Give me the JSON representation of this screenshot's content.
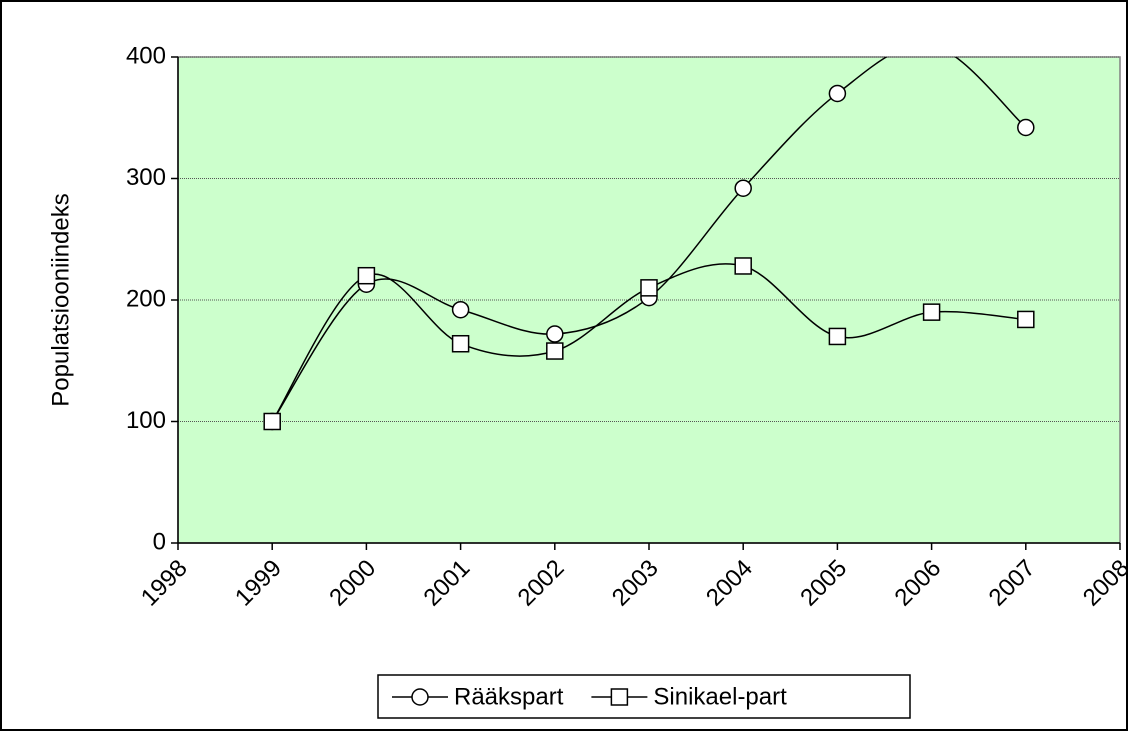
{
  "chart_data": {
    "type": "line",
    "y_label": "Populatsiooniindeks",
    "x": [
      1999,
      2000,
      2001,
      2002,
      2003,
      2004,
      2005,
      2006,
      2007
    ],
    "series": [
      {
        "name": "Rääkspart",
        "color": "#000000",
        "marker": "circle",
        "values": [
          100,
          213,
          192,
          172,
          202,
          292,
          370,
          410,
          342
        ]
      },
      {
        "name": "Sinikael-part",
        "color": "#000000",
        "marker": "square",
        "values": [
          100,
          220,
          164,
          158,
          210,
          228,
          170,
          190,
          184
        ]
      }
    ],
    "xlim": [
      1998,
      2008
    ],
    "xticks": [
      1998,
      1999,
      2000,
      2001,
      2002,
      2003,
      2004,
      2005,
      2006,
      2007,
      2008
    ],
    "ylim": [
      0,
      400
    ],
    "yticks": [
      0,
      100,
      200,
      300,
      400
    ],
    "grid": true,
    "smooth": true,
    "plot_background": "#ccffcc",
    "legend": "bottom"
  }
}
